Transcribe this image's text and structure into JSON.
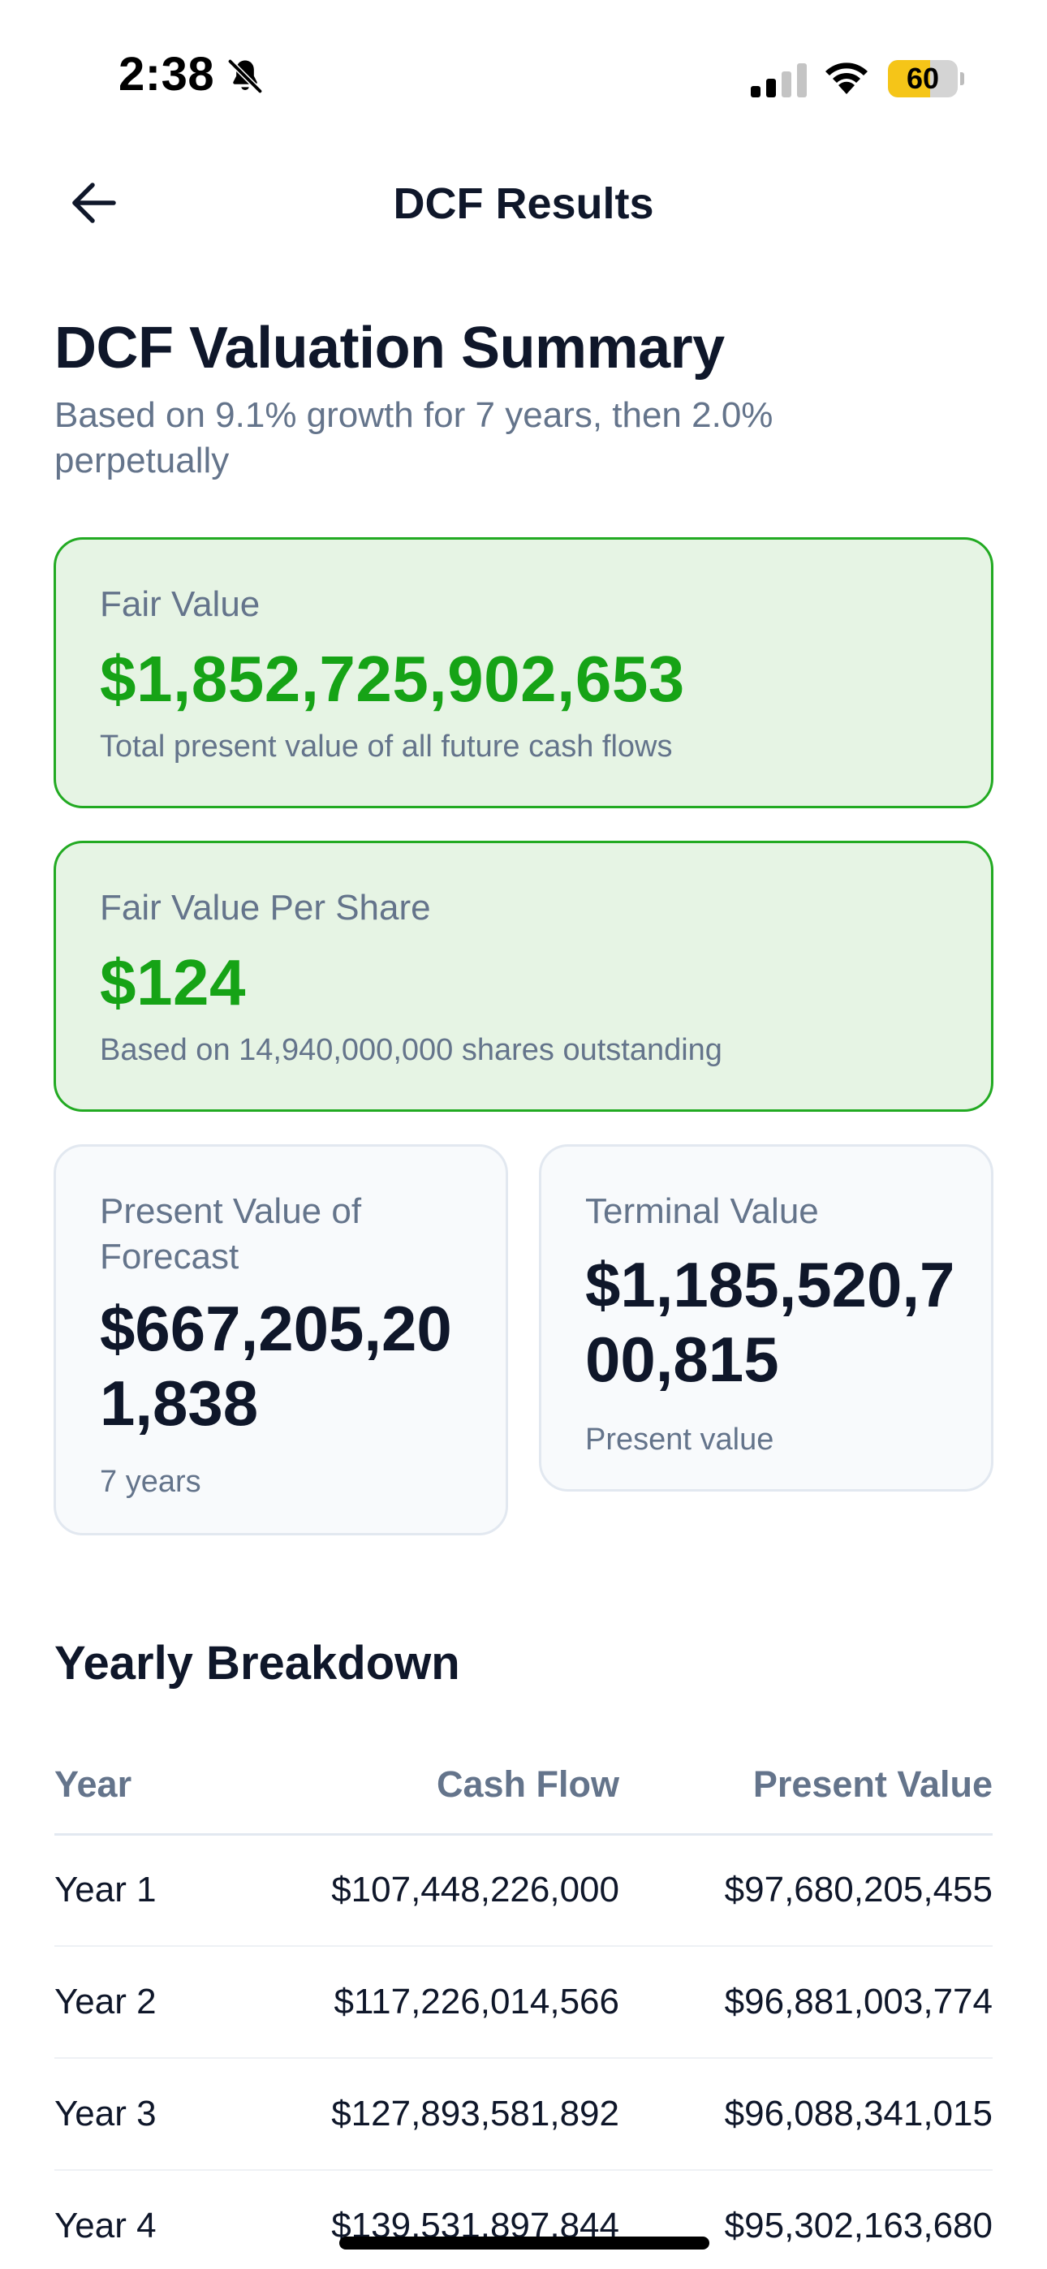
{
  "status_bar": {
    "time": "2:38",
    "battery_level": "60",
    "icons": [
      "bell-slash-icon",
      "cellular-signal-icon",
      "wifi-icon",
      "battery-icon"
    ],
    "battery_color": "#f5c518"
  },
  "nav": {
    "title": "DCF Results",
    "back_icon": "arrow-left-icon"
  },
  "summary": {
    "title": "DCF Valuation Summary",
    "subtitle": "Based on 9.1% growth for 7 years, then 2.0% perpetually"
  },
  "cards": {
    "fair_value": {
      "label": "Fair Value",
      "value": "$1,852,725,902,653",
      "note": "Total present value of all future cash flows"
    },
    "fair_value_per_share": {
      "label": "Fair Value Per Share",
      "value": "$124",
      "note": "Based on 14,940,000,000 shares outstanding"
    },
    "pv_forecast": {
      "label": "Present Value of Forecast",
      "value": "$667,205,201,838",
      "note": "7 years"
    },
    "terminal_value": {
      "label": "Terminal Value",
      "value": "$1,185,520,700,815",
      "note": "Present value"
    }
  },
  "breakdown": {
    "title": "Yearly Breakdown",
    "headers": [
      "Year",
      "Cash Flow",
      "Present Value"
    ],
    "rows": [
      [
        "Year 1",
        "$107,448,226,000",
        "$97,680,205,455"
      ],
      [
        "Year 2",
        "$117,226,014,566",
        "$96,881,003,774"
      ],
      [
        "Year 3",
        "$127,893,581,892",
        "$96,088,341,015"
      ],
      [
        "Year 4",
        "$139,531,897,844",
        "$95,302,163,680"
      ]
    ]
  },
  "colors": {
    "accent_green": "#16a316",
    "card_green_bg": "#e6f4e4",
    "card_green_border": "#22aa22",
    "text_dark": "#0f172a",
    "text_muted": "#64748b"
  }
}
